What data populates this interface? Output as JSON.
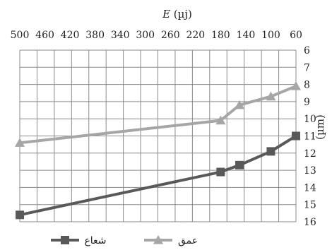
{
  "chart_data": {
    "type": "line",
    "title": "E (µj)",
    "xlabel": "E (µj)",
    "ylabel": "(µm)",
    "x_axis": {
      "position": "top",
      "reversed": true,
      "min": 60,
      "max": 500,
      "ticks": [
        500,
        460,
        420,
        380,
        340,
        300,
        260,
        220,
        180,
        140,
        100,
        60
      ],
      "tick_labels": [
        "500",
        "460",
        "420",
        "380",
        "340",
        "300",
        "260",
        "220",
        "180",
        "140",
        "100",
        "60"
      ]
    },
    "y_axis": {
      "position": "right",
      "reversed": true,
      "min": 6,
      "max": 16,
      "ticks": [
        6,
        7,
        8,
        9,
        10,
        11,
        12,
        13,
        14,
        15,
        16
      ],
      "tick_labels": [
        "6",
        "7",
        "8",
        "9",
        "10",
        "11",
        "12",
        "13",
        "14",
        "15",
        "16"
      ]
    },
    "grid": true,
    "legend": "bottom",
    "series": [
      {
        "name": "شعاع",
        "color": "#595959",
        "marker": "square",
        "points": [
          {
            "x": 500,
            "y": 15.6
          },
          {
            "x": 180,
            "y": 13.1
          },
          {
            "x": 150,
            "y": 12.7
          },
          {
            "x": 100,
            "y": 11.9
          },
          {
            "x": 60,
            "y": 11.0
          }
        ]
      },
      {
        "name": "عمق",
        "color": "#a6a6a6",
        "marker": "triangle",
        "points": [
          {
            "x": 500,
            "y": 11.4
          },
          {
            "x": 180,
            "y": 10.1
          },
          {
            "x": 150,
            "y": 9.2
          },
          {
            "x": 100,
            "y": 8.7
          },
          {
            "x": 60,
            "y": 8.1
          }
        ]
      }
    ]
  }
}
